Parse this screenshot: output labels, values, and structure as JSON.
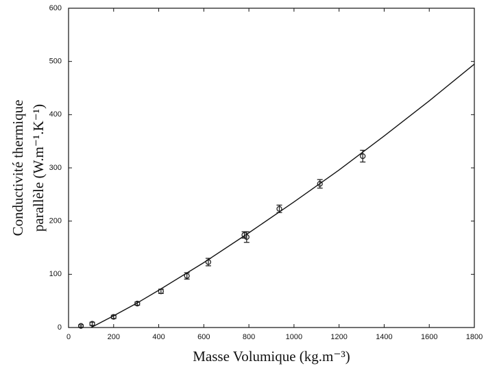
{
  "chart_data": {
    "type": "scatter",
    "xlabel": "Masse Volumique (kg.m⁻³)",
    "ylabel": [
      "Conductivité thermique",
      "parallèle (W.m⁻¹.K⁻¹)"
    ],
    "xlim": [
      0,
      1800
    ],
    "ylim": [
      0,
      600
    ],
    "xticks": [
      0,
      200,
      400,
      600,
      800,
      1000,
      1200,
      1400,
      1600,
      1800
    ],
    "yticks": [
      0,
      100,
      200,
      300,
      400,
      500,
      600
    ],
    "series": [
      {
        "kind": "points",
        "color": "#222222",
        "x": [
          55,
          105,
          200,
          305,
          410,
          525,
          620,
          780,
          790,
          935,
          1115,
          1305
        ],
        "values": [
          3,
          7,
          20,
          45,
          68,
          97,
          123,
          174,
          170,
          223,
          270,
          322
        ],
        "errors": [
          2,
          3,
          3,
          3,
          4,
          6,
          7,
          6,
          10,
          7,
          8,
          11
        ]
      },
      {
        "kind": "line",
        "color": "#111111",
        "x": [
          100,
          200,
          300,
          400,
          600,
          800,
          1000,
          1200,
          1400,
          1600,
          1800
        ],
        "values": [
          0,
          22,
          45,
          70,
          122,
          178,
          236,
          296,
          360,
          426,
          495
        ]
      }
    ]
  }
}
